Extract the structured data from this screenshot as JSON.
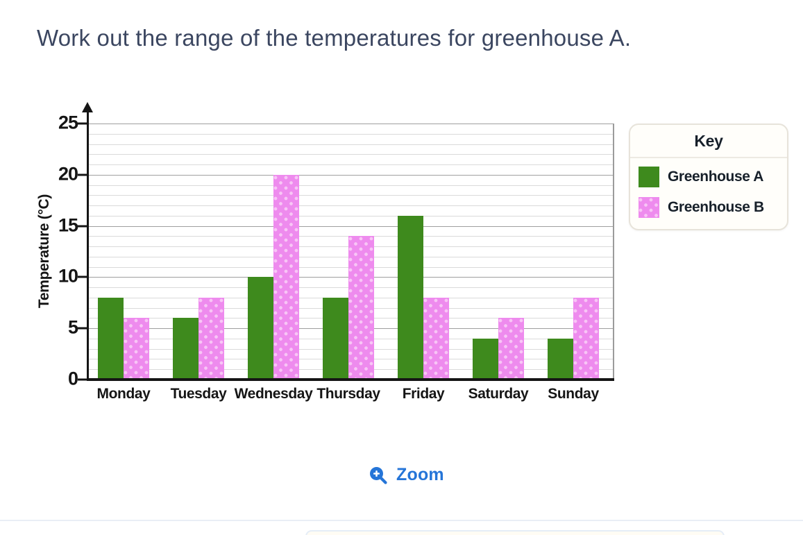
{
  "page": {
    "title": "Work out the range of the temperatures for greenhouse A."
  },
  "chart_data": {
    "type": "bar",
    "title": "",
    "categories": [
      "Monday",
      "Tuesday",
      "Wednesday",
      "Thursday",
      "Friday",
      "Saturday",
      "Sunday"
    ],
    "series": [
      {
        "name": "Greenhouse A",
        "color": "#3e8a1d",
        "pattern": "solid",
        "values": [
          8,
          6,
          10,
          8,
          16,
          4,
          4
        ]
      },
      {
        "name": "Greenhouse B",
        "color": "#ee8bee",
        "pattern": "polka-dot",
        "pattern_dot_color": "#f8c6f6",
        "values": [
          6,
          8,
          20,
          14,
          8,
          6,
          8
        ]
      }
    ],
    "xlabel": "",
    "ylabel": "Temperature (°C)",
    "ylim": [
      0,
      25
    ],
    "yticks": [
      0,
      5,
      10,
      15,
      20,
      25
    ],
    "ytick_step_major": 5,
    "ytick_step_minor": 1,
    "grid": "horizontal; minor every 1 (light gray), major every 5 (darker gray); right frame line",
    "legend_position": "right"
  },
  "legend": {
    "title": "Key"
  },
  "controls": {
    "zoom_label": "Zoom"
  },
  "colors": {
    "title_text": "#3b4660",
    "zoom_blue": "#2575d8",
    "axis_black": "#151515"
  }
}
